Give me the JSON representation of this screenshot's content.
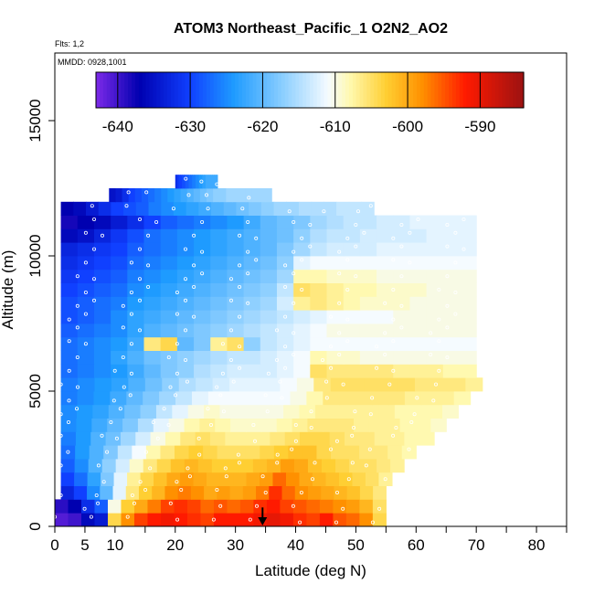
{
  "chart_data": {
    "type": "heatmap",
    "title": "ATOM3 Northeast_Pacific_1 O2N2_AO2",
    "subtitle_flights": "Flts: 1,2",
    "subtitle_dates": "MMDD: 0928,1001",
    "xlabel": "Latitude (deg N)",
    "ylabel": "Altitude (m)",
    "xlim": [
      0,
      85
    ],
    "ylim": [
      0,
      17500
    ],
    "x_ticks": [
      0,
      5,
      10,
      20,
      30,
      40,
      50,
      60,
      70,
      80
    ],
    "x_minor_ticks": [
      15,
      25,
      35,
      45,
      55,
      65,
      75,
      85
    ],
    "y_ticks": [
      0,
      5000,
      10000,
      15000
    ],
    "colorbar": {
      "range": [
        -643,
        -584
      ],
      "ticks": [
        -640,
        -630,
        -620,
        -610,
        -600,
        -590
      ],
      "colors": [
        "#6a0dad",
        "#0000a8",
        "#1e90ff",
        "#ffffff",
        "#ffff66",
        "#ff8c00",
        "#ff0000",
        "#a50000"
      ]
    },
    "colorbar_stops": [
      {
        "value": -643,
        "color": "#7d2ae8"
      },
      {
        "value": -637,
        "color": "#0000b0"
      },
      {
        "value": -630,
        "color": "#1040ff"
      },
      {
        "value": -624,
        "color": "#1e9bff"
      },
      {
        "value": -617,
        "color": "#8fd0ff"
      },
      {
        "value": -611,
        "color": "#f5fbff"
      },
      {
        "value": -608,
        "color": "#fff9b0"
      },
      {
        "value": -603,
        "color": "#ffcf33"
      },
      {
        "value": -598,
        "color": "#ff9000"
      },
      {
        "value": -592,
        "color": "#ff1a00"
      },
      {
        "value": -584,
        "color": "#9c1212"
      }
    ],
    "altitude_bands": [
      {
        "alt": [
          0,
          500
        ],
        "lat": [
          0,
          55
        ],
        "values": [
          -641,
          -640,
          -636,
          -634,
          -604,
          -598,
          -594,
          -592,
          -591,
          -592,
          -593,
          -594,
          -592,
          -592,
          -592,
          -591,
          -590,
          -591,
          -593,
          -594,
          -592,
          -595,
          -596,
          -598,
          -604
        ]
      },
      {
        "alt": [
          500,
          1000
        ],
        "lat": [
          0,
          55
        ],
        "values": [
          -639,
          -637,
          -632,
          -628,
          -610,
          -603,
          -600,
          -597,
          -594,
          -593,
          -594,
          -596,
          -595,
          -596,
          -595,
          -593,
          -592,
          -594,
          -595,
          -596,
          -597,
          -598,
          -599,
          -601,
          -605
        ]
      },
      {
        "alt": [
          1000,
          1500
        ],
        "lat": [
          1,
          55
        ],
        "values": [
          -633,
          -630,
          -625,
          -620,
          -612,
          -606,
          -603,
          -601,
          -598,
          -597,
          -598,
          -600,
          -599,
          -600,
          -599,
          -597,
          -593,
          -596,
          -598,
          -599,
          -600,
          -601,
          -602,
          -604,
          -606
        ]
      },
      {
        "alt": [
          1500,
          2000
        ],
        "lat": [
          1,
          56
        ],
        "values": [
          -630,
          -627,
          -623,
          -618,
          -612,
          -607,
          -604,
          -602,
          -600,
          -599,
          -600,
          -601,
          -601,
          -601,
          -600,
          -599,
          -596,
          -598,
          -600,
          -601,
          -602,
          -603,
          -604,
          -605,
          -607
        ]
      },
      {
        "alt": [
          2000,
          2500
        ],
        "lat": [
          1,
          58
        ],
        "values": [
          -628,
          -625,
          -621,
          -617,
          -613,
          -609,
          -606,
          -604,
          -602,
          -601,
          -602,
          -603,
          -603,
          -603,
          -602,
          -601,
          -599,
          -600,
          -602,
          -603,
          -604,
          -605,
          -605,
          -606,
          -607
        ]
      },
      {
        "alt": [
          2500,
          3000
        ],
        "lat": [
          1,
          60
        ],
        "values": [
          -627,
          -624,
          -621,
          -618,
          -614,
          -611,
          -608,
          -606,
          -604,
          -603,
          -604,
          -605,
          -605,
          -605,
          -604,
          -603,
          -602,
          -602,
          -604,
          -605,
          -605,
          -606,
          -606,
          -607,
          -608
        ]
      },
      {
        "alt": [
          3000,
          3500
        ],
        "lat": [
          1,
          63
        ],
        "values": [
          -626,
          -624,
          -621,
          -619,
          -616,
          -613,
          -610,
          -608,
          -606,
          -605,
          -606,
          -607,
          -607,
          -607,
          -606,
          -605,
          -604,
          -604,
          -605,
          -606,
          -606,
          -607,
          -607,
          -608,
          -608
        ]
      },
      {
        "alt": [
          3500,
          4000
        ],
        "lat": [
          1,
          65
        ],
        "values": [
          -625,
          -624,
          -622,
          -620,
          -618,
          -615,
          -612,
          -610,
          -608,
          -607,
          -608,
          -609,
          -609,
          -609,
          -608,
          -607,
          -606,
          -606,
          -606,
          -607,
          -607,
          -607,
          -608,
          -608,
          -609
        ]
      },
      {
        "alt": [
          4000,
          4500
        ],
        "lat": [
          1,
          67
        ],
        "values": [
          -625,
          -624,
          -623,
          -621,
          -619,
          -617,
          -614,
          -612,
          -610,
          -609,
          -610,
          -610,
          -610,
          -610,
          -609,
          -608,
          -607,
          -607,
          -607,
          -607,
          -607,
          -608,
          -608,
          -608,
          -609
        ]
      },
      {
        "alt": [
          4500,
          5000
        ],
        "lat": [
          1,
          69
        ],
        "values": [
          -626,
          -625,
          -624,
          -622,
          -620,
          -618,
          -616,
          -614,
          -612,
          -611,
          -611,
          -611,
          -611,
          -611,
          -610,
          -608,
          -606,
          -606,
          -606,
          -606,
          -606,
          -607,
          -607,
          -607,
          -608
        ]
      },
      {
        "alt": [
          5000,
          5500
        ],
        "lat": [
          1,
          71
        ],
        "values": [
          -626,
          -625,
          -624,
          -623,
          -621,
          -619,
          -617,
          -615,
          -614,
          -613,
          -612,
          -612,
          -612,
          -611,
          -610,
          -606,
          -605,
          -605,
          -605,
          -605,
          -605,
          -606,
          -606,
          -606,
          -607
        ]
      },
      {
        "alt": [
          5500,
          6000
        ],
        "lat": [
          1,
          70
        ],
        "values": [
          -627,
          -626,
          -625,
          -624,
          -622,
          -620,
          -618,
          -617,
          -615,
          -614,
          -613,
          -613,
          -613,
          -612,
          -611,
          -605,
          -606,
          -606,
          -606,
          -606,
          -607,
          -607,
          -607,
          -608,
          -608
        ]
      },
      {
        "alt": [
          6000,
          6500
        ],
        "lat": [
          1,
          70
        ],
        "values": [
          -627,
          -626,
          -625,
          -623,
          -621,
          -619,
          -618,
          -617,
          -616,
          -615,
          -614,
          -614,
          -613,
          -612,
          -611,
          -608,
          -609,
          -609,
          -610,
          -610,
          -610,
          -610,
          -610,
          -610,
          -610
        ]
      },
      {
        "alt": [
          6500,
          7000
        ],
        "lat": [
          1,
          70
        ],
        "values": [
          -627,
          -626,
          -625,
          -624,
          -622,
          -606,
          -604,
          -620,
          -618,
          -607,
          -605,
          -617,
          -614,
          -613,
          -612,
          -611,
          -611,
          -611,
          -611,
          -611,
          -611,
          -611,
          -611,
          -611,
          -611
        ]
      },
      {
        "alt": [
          7000,
          7500
        ],
        "lat": [
          1,
          70
        ],
        "values": [
          -628,
          -627,
          -626,
          -625,
          -623,
          -621,
          -620,
          -619,
          -618,
          -617,
          -616,
          -615,
          -614,
          -613,
          -612,
          -611,
          -610,
          -610,
          -610,
          -610,
          -610,
          -610,
          -610,
          -610,
          -610
        ]
      },
      {
        "alt": [
          7500,
          8000
        ],
        "lat": [
          1,
          70
        ],
        "values": [
          -629,
          -628,
          -627,
          -625,
          -623,
          -622,
          -621,
          -620,
          -619,
          -618,
          -617,
          -616,
          -615,
          -614,
          -613,
          -612,
          -611,
          -611,
          -611,
          -611,
          -610,
          -610,
          -610,
          -610,
          -610
        ]
      },
      {
        "alt": [
          8000,
          8500
        ],
        "lat": [
          1,
          70
        ],
        "values": [
          -629,
          -628,
          -627,
          -626,
          -624,
          -623,
          -622,
          -621,
          -620,
          -619,
          -618,
          -617,
          -616,
          -613,
          -607,
          -606,
          -607,
          -608,
          -609,
          -609,
          -609,
          -610,
          -610,
          -610,
          -610
        ]
      },
      {
        "alt": [
          8500,
          9000
        ],
        "lat": [
          1,
          70
        ],
        "values": [
          -630,
          -629,
          -628,
          -627,
          -625,
          -624,
          -623,
          -622,
          -621,
          -620,
          -619,
          -618,
          -617,
          -614,
          -605,
          -606,
          -607,
          -608,
          -608,
          -609,
          -609,
          -609,
          -610,
          -610,
          -610
        ]
      },
      {
        "alt": [
          9000,
          9500
        ],
        "lat": [
          1,
          70
        ],
        "values": [
          -631,
          -630,
          -629,
          -628,
          -626,
          -625,
          -624,
          -623,
          -622,
          -621,
          -620,
          -619,
          -618,
          -616,
          -608,
          -608,
          -609,
          -609,
          -609,
          -610,
          -610,
          -610,
          -610,
          -610,
          -610
        ]
      },
      {
        "alt": [
          9500,
          10000
        ],
        "lat": [
          1,
          70
        ],
        "values": [
          -632,
          -631,
          -630,
          -629,
          -627,
          -626,
          -625,
          -624,
          -623,
          -622,
          -621,
          -620,
          -619,
          -617,
          -612,
          -611,
          -611,
          -611,
          -611,
          -611,
          -611,
          -611,
          -611,
          -611,
          -611
        ]
      },
      {
        "alt": [
          10000,
          10500
        ],
        "lat": [
          1,
          70
        ],
        "values": [
          -633,
          -632,
          -631,
          -630,
          -628,
          -627,
          -626,
          -625,
          -624,
          -623,
          -622,
          -621,
          -620,
          -618,
          -616,
          -614,
          -613,
          -613,
          -613,
          -612,
          -612,
          -612,
          -612,
          -612,
          -612
        ]
      },
      {
        "alt": [
          10500,
          11000
        ],
        "lat": [
          1,
          70
        ],
        "values": [
          -636,
          -635,
          -633,
          -631,
          -629,
          -627,
          -626,
          -625,
          -624,
          -623,
          -622,
          -621,
          -620,
          -619,
          -617,
          -615,
          -614,
          -614,
          -613,
          -613,
          -613,
          -613,
          -612,
          -612,
          -612
        ]
      },
      {
        "alt": [
          11000,
          11500
        ],
        "lat": [
          1,
          70
        ],
        "values": [
          -638,
          -637,
          -636,
          -634,
          -632,
          -630,
          -628,
          -627,
          -626,
          -625,
          -624,
          -622,
          -620,
          -619,
          -618,
          -616,
          -615,
          -614,
          -614,
          -613,
          -613,
          -612,
          -612,
          -612,
          -612
        ]
      },
      {
        "alt": [
          11500,
          12000
        ],
        "lat": [
          1,
          53
        ],
        "values": [
          -637,
          -636,
          -634,
          -632,
          -630,
          -629,
          -628,
          -626,
          -625,
          -624,
          -623,
          -622,
          -621,
          -620,
          -619,
          -618,
          -617,
          -616,
          -616,
          -615,
          -615,
          -615,
          -614,
          -614,
          -614
        ]
      },
      {
        "alt": [
          12000,
          12500
        ],
        "lat": [
          9,
          36
        ],
        "values": [
          -635,
          -634,
          -632,
          -630,
          -629,
          -628,
          -627,
          -626,
          -625,
          -624,
          -623,
          -622,
          -621,
          -620,
          -619,
          -618,
          -617,
          -617,
          -616,
          -616,
          -616,
          -616,
          -616,
          -616,
          -616
        ]
      },
      {
        "alt": [
          12500,
          13000
        ],
        "lat": [
          20,
          27
        ],
        "values": [
          -632,
          -631,
          -630,
          -630,
          -629,
          -629,
          -628,
          -628,
          -627,
          -627,
          -626,
          -626,
          -625,
          -625,
          -624,
          -624,
          -623,
          -623,
          -622,
          -622,
          -622,
          -622,
          -622,
          -622,
          -622
        ]
      }
    ],
    "flight_track_label": "",
    "arrow_marker": {
      "lat": 34.5,
      "alt_top": 700,
      "alt_bottom": 0
    }
  }
}
